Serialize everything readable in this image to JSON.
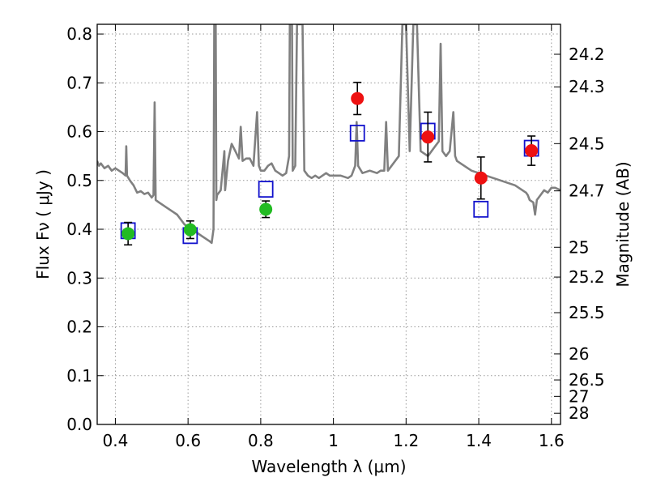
{
  "chart_data": {
    "type": "scatter",
    "title": "",
    "xlabel": "Wavelength  λ (μm)",
    "ylabel": "Flux  Fν  ( μJy )",
    "y2label": "Magnitude (AB)",
    "xlim": [
      0.35,
      1.625
    ],
    "ylim": [
      0.0,
      0.82
    ],
    "grid": true,
    "x_ticks": [
      {
        "value": 0.4,
        "label": "0.4"
      },
      {
        "value": 0.6,
        "label": "0.6"
      },
      {
        "value": 0.8,
        "label": "0.8"
      },
      {
        "value": 1.0,
        "label": "1"
      },
      {
        "value": 1.2,
        "label": "1.2"
      },
      {
        "value": 1.4,
        "label": "1.4"
      },
      {
        "value": 1.6,
        "label": "1.6"
      }
    ],
    "y_ticks": [
      {
        "value": 0.0,
        "label": "0.0"
      },
      {
        "value": 0.1,
        "label": "0.1"
      },
      {
        "value": 0.2,
        "label": "0.2"
      },
      {
        "value": 0.3,
        "label": "0.3"
      },
      {
        "value": 0.4,
        "label": "0.4"
      },
      {
        "value": 0.5,
        "label": "0.5"
      },
      {
        "value": 0.6,
        "label": "0.6"
      },
      {
        "value": 0.7,
        "label": "0.7"
      },
      {
        "value": 0.8,
        "label": "0.8"
      }
    ],
    "mag_ticks": [
      {
        "value": 24.2,
        "label": "24.2"
      },
      {
        "value": 24.3,
        "label": "24.3"
      },
      {
        "value": 24.5,
        "label": "24.5"
      },
      {
        "value": 24.7,
        "label": "24.7"
      },
      {
        "value": 25.0,
        "label": "25"
      },
      {
        "value": 25.2,
        "label": "25.2"
      },
      {
        "value": 25.5,
        "label": "25.5"
      },
      {
        "value": 26.0,
        "label": "26"
      },
      {
        "value": 26.5,
        "label": "26.5"
      },
      {
        "value": 27.0,
        "label": "27"
      },
      {
        "value": 28.0,
        "label": "28"
      }
    ],
    "colors": {
      "spectrum": "#808080",
      "optical_points": "#22bb22",
      "nir_points": "#ee1111",
      "model_boxes": "#1111cc",
      "errorbar": "#000000",
      "grid": "#999999"
    },
    "spectrum": [
      [
        0.35,
        0.54
      ],
      [
        0.355,
        0.53
      ],
      [
        0.36,
        0.535
      ],
      [
        0.37,
        0.525
      ],
      [
        0.38,
        0.53
      ],
      [
        0.39,
        0.52
      ],
      [
        0.4,
        0.525
      ],
      [
        0.41,
        0.52
      ],
      [
        0.42,
        0.515
      ],
      [
        0.428,
        0.51
      ],
      [
        0.43,
        0.57
      ],
      [
        0.432,
        0.51
      ],
      [
        0.44,
        0.5
      ],
      [
        0.45,
        0.49
      ],
      [
        0.46,
        0.475
      ],
      [
        0.47,
        0.478
      ],
      [
        0.48,
        0.472
      ],
      [
        0.49,
        0.475
      ],
      [
        0.5,
        0.465
      ],
      [
        0.505,
        0.47
      ],
      [
        0.508,
        0.66
      ],
      [
        0.511,
        0.46
      ],
      [
        0.52,
        0.455
      ],
      [
        0.53,
        0.45
      ],
      [
        0.54,
        0.445
      ],
      [
        0.55,
        0.44
      ],
      [
        0.56,
        0.435
      ],
      [
        0.57,
        0.43
      ],
      [
        0.58,
        0.42
      ],
      [
        0.59,
        0.41
      ],
      [
        0.6,
        0.405
      ],
      [
        0.61,
        0.4
      ],
      [
        0.62,
        0.395
      ],
      [
        0.63,
        0.39
      ],
      [
        0.64,
        0.385
      ],
      [
        0.65,
        0.38
      ],
      [
        0.66,
        0.375
      ],
      [
        0.665,
        0.372
      ],
      [
        0.67,
        0.4
      ],
      [
        0.672,
        0.82
      ],
      [
        0.676,
        0.82
      ],
      [
        0.678,
        0.46
      ],
      [
        0.68,
        0.47
      ],
      [
        0.69,
        0.48
      ],
      [
        0.7,
        0.56
      ],
      [
        0.702,
        0.48
      ],
      [
        0.71,
        0.54
      ],
      [
        0.72,
        0.575
      ],
      [
        0.73,
        0.56
      ],
      [
        0.74,
        0.545
      ],
      [
        0.745,
        0.61
      ],
      [
        0.75,
        0.54
      ],
      [
        0.76,
        0.545
      ],
      [
        0.77,
        0.545
      ],
      [
        0.78,
        0.53
      ],
      [
        0.79,
        0.64
      ],
      [
        0.795,
        0.53
      ],
      [
        0.8,
        0.52
      ],
      [
        0.81,
        0.52
      ],
      [
        0.82,
        0.53
      ],
      [
        0.83,
        0.535
      ],
      [
        0.84,
        0.52
      ],
      [
        0.85,
        0.515
      ],
      [
        0.86,
        0.51
      ],
      [
        0.87,
        0.515
      ],
      [
        0.878,
        0.55
      ],
      [
        0.88,
        0.82
      ],
      [
        0.886,
        0.82
      ],
      [
        0.888,
        0.52
      ],
      [
        0.895,
        0.53
      ],
      [
        0.9,
        0.82
      ],
      [
        0.915,
        0.82
      ],
      [
        0.92,
        0.52
      ],
      [
        0.93,
        0.51
      ],
      [
        0.94,
        0.505
      ],
      [
        0.95,
        0.51
      ],
      [
        0.96,
        0.505
      ],
      [
        0.97,
        0.51
      ],
      [
        0.98,
        0.515
      ],
      [
        0.99,
        0.51
      ],
      [
        1.0,
        0.51
      ],
      [
        1.02,
        0.51
      ],
      [
        1.04,
        0.505
      ],
      [
        1.05,
        0.51
      ],
      [
        1.06,
        0.53
      ],
      [
        1.064,
        0.62
      ],
      [
        1.068,
        0.53
      ],
      [
        1.08,
        0.515
      ],
      [
        1.1,
        0.52
      ],
      [
        1.12,
        0.515
      ],
      [
        1.13,
        0.52
      ],
      [
        1.14,
        0.52
      ],
      [
        1.145,
        0.62
      ],
      [
        1.15,
        0.52
      ],
      [
        1.16,
        0.53
      ],
      [
        1.17,
        0.54
      ],
      [
        1.18,
        0.55
      ],
      [
        1.19,
        0.82
      ],
      [
        1.2,
        0.82
      ],
      [
        1.21,
        0.56
      ],
      [
        1.22,
        0.82
      ],
      [
        1.23,
        0.82
      ],
      [
        1.24,
        0.56
      ],
      [
        1.26,
        0.55
      ],
      [
        1.28,
        0.57
      ],
      [
        1.29,
        0.58
      ],
      [
        1.295,
        0.78
      ],
      [
        1.3,
        0.56
      ],
      [
        1.31,
        0.55
      ],
      [
        1.32,
        0.56
      ],
      [
        1.33,
        0.64
      ],
      [
        1.335,
        0.55
      ],
      [
        1.34,
        0.54
      ],
      [
        1.36,
        0.53
      ],
      [
        1.38,
        0.52
      ],
      [
        1.4,
        0.515
      ],
      [
        1.42,
        0.51
      ],
      [
        1.44,
        0.505
      ],
      [
        1.46,
        0.5
      ],
      [
        1.48,
        0.495
      ],
      [
        1.5,
        0.49
      ],
      [
        1.52,
        0.48
      ],
      [
        1.53,
        0.475
      ],
      [
        1.535,
        0.47
      ],
      [
        1.54,
        0.46
      ],
      [
        1.55,
        0.455
      ],
      [
        1.555,
        0.43
      ],
      [
        1.56,
        0.46
      ],
      [
        1.57,
        0.47
      ],
      [
        1.58,
        0.48
      ],
      [
        1.59,
        0.475
      ],
      [
        1.6,
        0.485
      ],
      [
        1.61,
        0.485
      ],
      [
        1.625,
        0.48
      ]
    ],
    "measurements": [
      {
        "x": 0.435,
        "y": 0.391,
        "err": 0.023,
        "band": "optical"
      },
      {
        "x": 0.606,
        "y": 0.399,
        "err": 0.018,
        "band": "optical"
      },
      {
        "x": 0.814,
        "y": 0.441,
        "err": 0.017,
        "band": "optical"
      },
      {
        "x": 1.066,
        "y": 0.668,
        "err": 0.033,
        "band": "nir"
      },
      {
        "x": 1.26,
        "y": 0.589,
        "err": 0.051,
        "band": "nir"
      },
      {
        "x": 1.406,
        "y": 0.505,
        "err": 0.043,
        "band": "nir"
      },
      {
        "x": 1.545,
        "y": 0.561,
        "err": 0.03,
        "band": "nir"
      }
    ],
    "model_fluxes": [
      {
        "x": 0.435,
        "y": 0.397
      },
      {
        "x": 0.606,
        "y": 0.387
      },
      {
        "x": 0.814,
        "y": 0.482
      },
      {
        "x": 1.066,
        "y": 0.597
      },
      {
        "x": 1.26,
        "y": 0.601
      },
      {
        "x": 1.406,
        "y": 0.441
      },
      {
        "x": 1.545,
        "y": 0.566
      }
    ]
  }
}
